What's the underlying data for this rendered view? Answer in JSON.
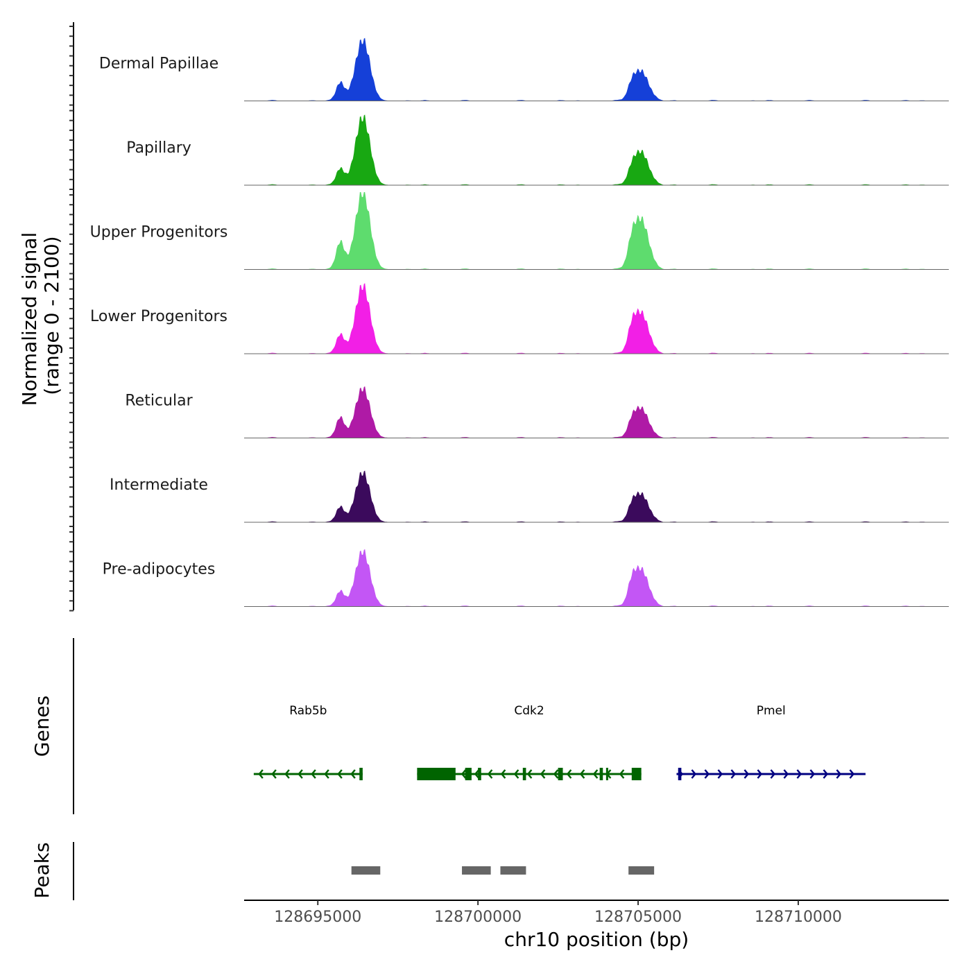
{
  "chart_data": {
    "type": "area",
    "title": "",
    "xlabel": "chr10 position (bp)",
    "ylabel": "Normalized signal",
    "ylabel_range": "(range 0 - 2100)",
    "yrange": [
      0,
      2100
    ],
    "xlim": [
      128692700,
      128714700
    ],
    "xticks": [
      128695000,
      128700000,
      128705000,
      128710000
    ],
    "xtick_labels": [
      "128695000",
      "128700000",
      "128705000",
      "128710000"
    ],
    "tracks": [
      {
        "name": "Dermal Papillae",
        "color": "#1540D8",
        "peaks": [
          {
            "center": 128696400,
            "height": 1650
          },
          {
            "center": 128695700,
            "height": 500
          },
          {
            "center": 128705100,
            "height": 800
          },
          {
            "center": 128704800,
            "height": 300
          }
        ]
      },
      {
        "name": "Papillary",
        "color": "#18A812",
        "peaks": [
          {
            "center": 128696400,
            "height": 1850
          },
          {
            "center": 128695700,
            "height": 450
          },
          {
            "center": 128705100,
            "height": 900
          },
          {
            "center": 128704800,
            "height": 280
          }
        ]
      },
      {
        "name": "Upper Progenitors",
        "color": "#5EDC6E",
        "peaks": [
          {
            "center": 128696400,
            "height": 2100
          },
          {
            "center": 128695700,
            "height": 750
          },
          {
            "center": 128705100,
            "height": 1350
          },
          {
            "center": 128704800,
            "height": 500
          }
        ]
      },
      {
        "name": "Lower Progenitors",
        "color": "#F21FE6",
        "peaks": [
          {
            "center": 128696400,
            "height": 1850
          },
          {
            "center": 128695700,
            "height": 520
          },
          {
            "center": 128705100,
            "height": 1100
          },
          {
            "center": 128704800,
            "height": 480
          }
        ]
      },
      {
        "name": "Reticular",
        "color": "#AF1AA6",
        "peaks": [
          {
            "center": 128696400,
            "height": 1350
          },
          {
            "center": 128695700,
            "height": 560
          },
          {
            "center": 128705100,
            "height": 800
          },
          {
            "center": 128704800,
            "height": 290
          }
        ]
      },
      {
        "name": "Intermediate",
        "color": "#3B0A5C",
        "peaks": [
          {
            "center": 128696400,
            "height": 1350
          },
          {
            "center": 128695700,
            "height": 420
          },
          {
            "center": 128705100,
            "height": 760
          },
          {
            "center": 128704800,
            "height": 290
          }
        ]
      },
      {
        "name": "Pre-adipocytes",
        "color": "#C356F5",
        "peaks": [
          {
            "center": 128696400,
            "height": 1500
          },
          {
            "center": 128695700,
            "height": 420
          },
          {
            "center": 128705100,
            "height": 1000
          },
          {
            "center": 128704800,
            "height": 450
          }
        ]
      }
    ],
    "genes_panel_label": "Genes",
    "genes": [
      {
        "name": "Rab5b",
        "start": 128693000,
        "end": 128696400,
        "strand": "-",
        "color": "#006400",
        "exons": [
          [
            128696300,
            128696400
          ]
        ]
      },
      {
        "name": "Cdk2",
        "start": 128698100,
        "end": 128705100,
        "strand": "-",
        "color": "#006400",
        "exons": [
          [
            128698100,
            128699300
          ],
          [
            128699600,
            128699800
          ],
          [
            128700000,
            128700100
          ],
          [
            128701400,
            128701500
          ],
          [
            128702500,
            128702650
          ],
          [
            128703800,
            128703900
          ],
          [
            128704000,
            128704050
          ],
          [
            128704800,
            128705100
          ]
        ]
      },
      {
        "name": "Pmel",
        "start": 128706200,
        "end": 128712100,
        "strand": "+",
        "color": "#000080",
        "exons": [
          [
            128706250,
            128706350
          ]
        ]
      }
    ],
    "peaks_panel_label": "Peaks",
    "peak_regions": [
      [
        128696050,
        128696950
      ],
      [
        128699500,
        128700400
      ],
      [
        128700700,
        128701500
      ],
      [
        128704700,
        128705500
      ]
    ],
    "peak_color": "#666666"
  }
}
